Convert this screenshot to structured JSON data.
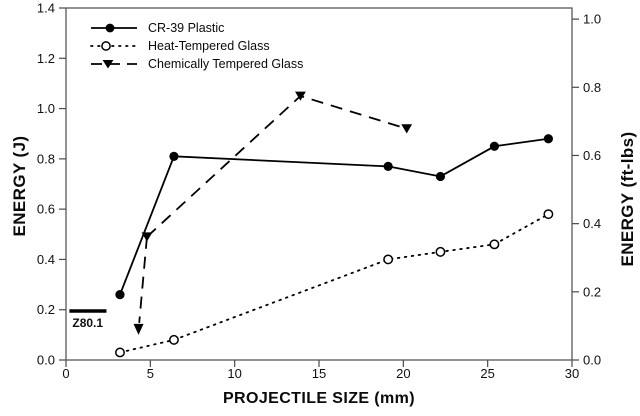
{
  "chart_data": {
    "type": "line",
    "title": "",
    "xlabel": "PROJECTILE SIZE (mm)",
    "ylabel_left": "ENERGY (J)",
    "ylabel_right": "ENERGY (ft-lbs)",
    "xlim": [
      0,
      30
    ],
    "x_ticks": [
      0,
      5,
      10,
      15,
      20,
      25,
      30
    ],
    "ylim_left": [
      0,
      1.4
    ],
    "y_ticks_left": [
      0.0,
      0.2,
      0.4,
      0.6,
      0.8,
      1.0,
      1.2,
      1.4
    ],
    "ylim_right": [
      0,
      1.0
    ],
    "y_ticks_right": [
      0.0,
      0.2,
      0.4,
      0.6,
      0.8,
      1.0
    ],
    "j_per_ftlb": 1.3558,
    "grid": false,
    "legend_position": "top-left-inside",
    "series": [
      {
        "name": "CR-39 Plastic",
        "marker": "filled-circle",
        "line": "solid",
        "points": [
          [
            3.2,
            0.26
          ],
          [
            6.4,
            0.81
          ],
          [
            19.1,
            0.77
          ],
          [
            22.2,
            0.73
          ],
          [
            25.4,
            0.85
          ],
          [
            28.6,
            0.88
          ]
        ]
      },
      {
        "name": "Heat-Tempered Glass",
        "marker": "open-circle",
        "line": "dotted",
        "points": [
          [
            3.2,
            0.03
          ],
          [
            6.4,
            0.08
          ],
          [
            19.1,
            0.4
          ],
          [
            22.2,
            0.43
          ],
          [
            25.4,
            0.46
          ],
          [
            28.6,
            0.58
          ]
        ]
      },
      {
        "name": "Chemically Tempered Glass",
        "marker": "filled-triangle-down",
        "line": "dashed",
        "points": [
          [
            4.8,
            0.49
          ],
          [
            13.9,
            1.05
          ],
          [
            20.2,
            0.92
          ]
        ]
      }
    ],
    "annotations": {
      "threshold": {
        "label": "Z80.1",
        "value_j": 0.195,
        "x_from": 0.2,
        "x_to": 2.4
      },
      "down_arrow": {
        "series": "Chemically Tempered Glass",
        "from": [
          4.8,
          0.49
        ],
        "to": [
          4.3,
          0.1
        ],
        "line": "dashed"
      }
    },
    "colors": {
      "series": "#000000",
      "frame": "#4a4a4a",
      "tick_text": "#111111",
      "background": "#ffffff"
    }
  }
}
